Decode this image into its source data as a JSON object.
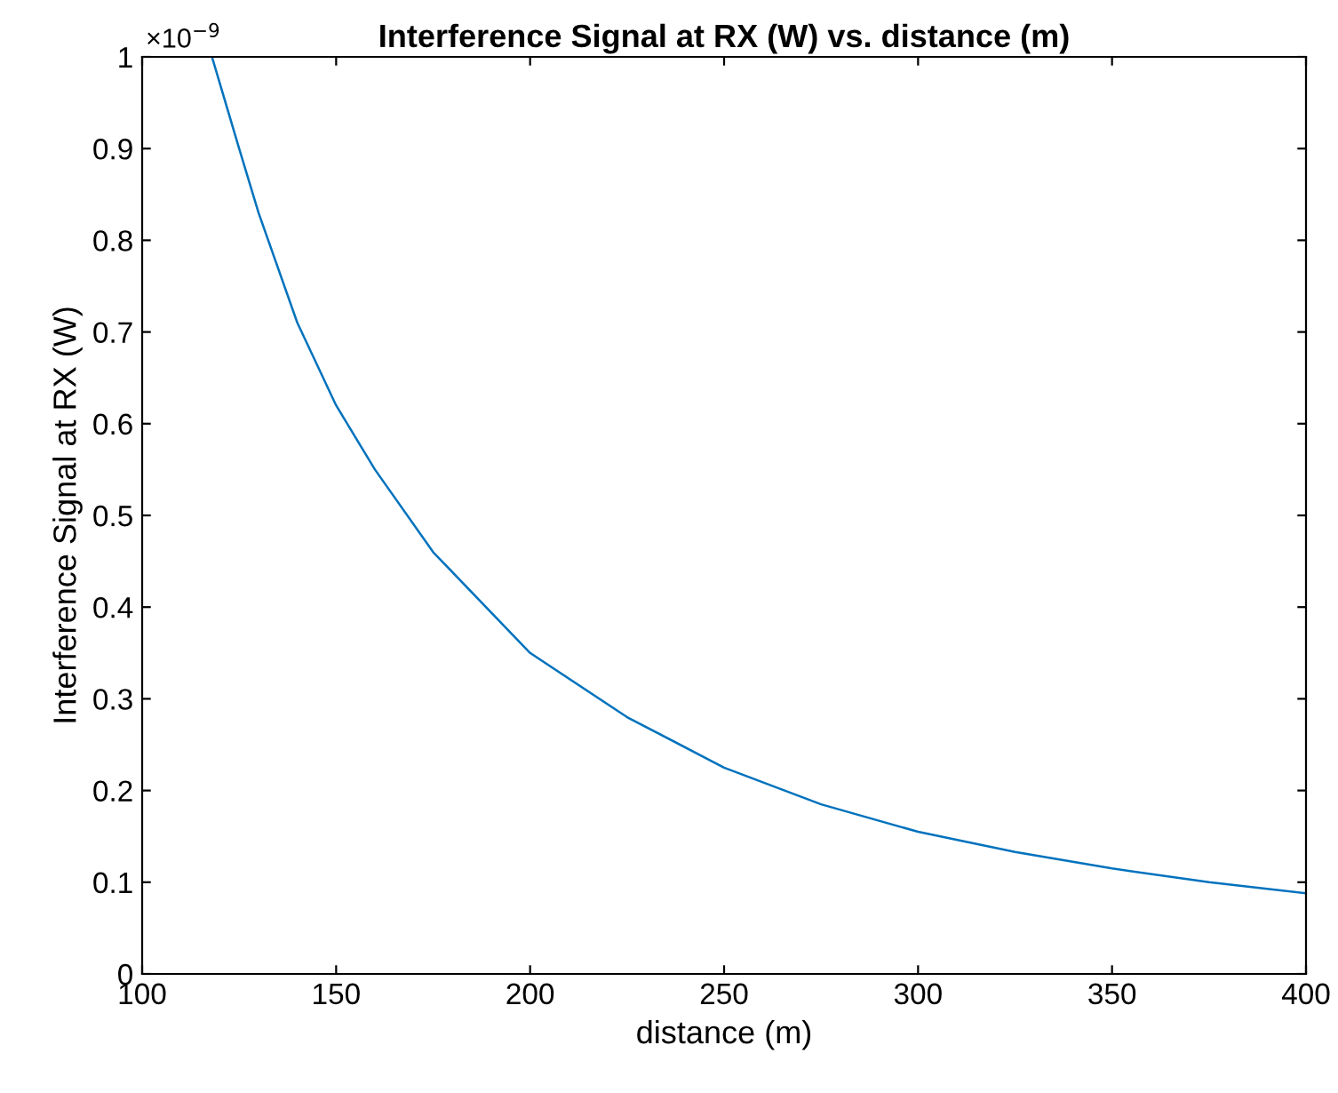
{
  "chart_data": {
    "type": "line",
    "title": "Interference Signal at RX (W) vs. distance (m)",
    "xlabel": "distance (m)",
    "ylabel": "Interference Signal at RX (W)",
    "annotations": [
      "×10$^{−9}$"
    ],
    "x": [
      118,
      125,
      130,
      140,
      150,
      160,
      175,
      200,
      225,
      250,
      275,
      300,
      325,
      350,
      375,
      400
    ],
    "series": [
      {
        "color": "#0072bd",
        "values": [
          1.0,
          0.9,
          0.83,
          0.71,
          0.62,
          0.55,
          0.46,
          0.35,
          0.28,
          0.225,
          0.185,
          0.155,
          0.133,
          0.115,
          0.1,
          0.088
        ]
      }
    ],
    "xlim": [
      100,
      400
    ],
    "xticks": [
      100,
      150,
      200,
      250,
      300,
      350,
      400
    ],
    "ylim": [
      0,
      1
    ],
    "yticks": [
      0,
      0.1,
      0.2,
      0.3,
      0.4,
      0.5,
      0.6,
      0.7,
      0.8,
      0.9,
      1
    ],
    "grid": false,
    "legend": false,
    "marker": "none",
    "line_style": "solid"
  }
}
